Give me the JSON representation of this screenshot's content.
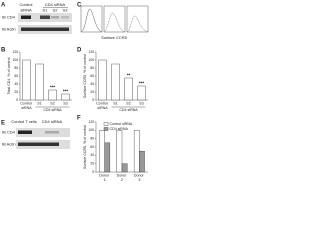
{
  "panel_labels": [
    "A",
    "B",
    "C",
    "D",
    "E",
    "F"
  ],
  "blot_a": {
    "header": [
      "Control",
      "CD4 siRNA"
    ],
    "columns": [
      "siRNA",
      "S1",
      "S2",
      "S3"
    ],
    "rows": [
      "IB CD4",
      "IB Actin"
    ]
  },
  "flow_c": {
    "xlabel": "Surface CCR5"
  },
  "blot_e": {
    "header": [
      "Control T cells",
      "CD4 siRNA"
    ],
    "rows": [
      "IB CD4",
      "IB Actin"
    ]
  },
  "chart_data": [
    {
      "type": "bar",
      "ylabel": "Total CD4, % of control",
      "categories": [
        "Control siRNA",
        "S1",
        "S2",
        "S3"
      ],
      "values": [
        100,
        90,
        25,
        15
      ],
      "color": "#ffffff",
      "ylim": [
        0,
        120
      ],
      "yticks": [
        0,
        20,
        40,
        60,
        80,
        100,
        120
      ],
      "group_label": "CD4 siRNA",
      "annotations": [
        {
          "category": "S2",
          "text": "***"
        },
        {
          "category": "S3",
          "text": "***"
        }
      ]
    },
    {
      "type": "bar",
      "ylabel": "Surface CCR5, % of control",
      "categories": [
        "Control siRNA",
        "S1",
        "S2",
        "S3"
      ],
      "values": [
        100,
        90,
        55,
        35
      ],
      "color": "#ffffff",
      "ylim": [
        0,
        120
      ],
      "yticks": [
        0,
        20,
        40,
        60,
        80,
        100,
        120
      ],
      "group_label": "CD4 siRNA",
      "annotations": [
        {
          "category": "S2",
          "text": "**"
        },
        {
          "category": "S3",
          "text": "***"
        }
      ]
    },
    {
      "type": "bar",
      "ylabel": "Surface CCR5, % of control",
      "categories": [
        "Donor 1",
        "Donor 2",
        "Donor 3"
      ],
      "series": [
        {
          "name": "Control siRNA",
          "color": "#ffffff",
          "values": [
            100,
            100,
            100
          ]
        },
        {
          "name": "CD4 siRNA",
          "color": "#999999",
          "values": [
            70,
            20,
            50
          ]
        }
      ],
      "ylim": [
        0,
        120
      ],
      "yticks": [
        0,
        20,
        40,
        60,
        80,
        100,
        120
      ]
    }
  ]
}
